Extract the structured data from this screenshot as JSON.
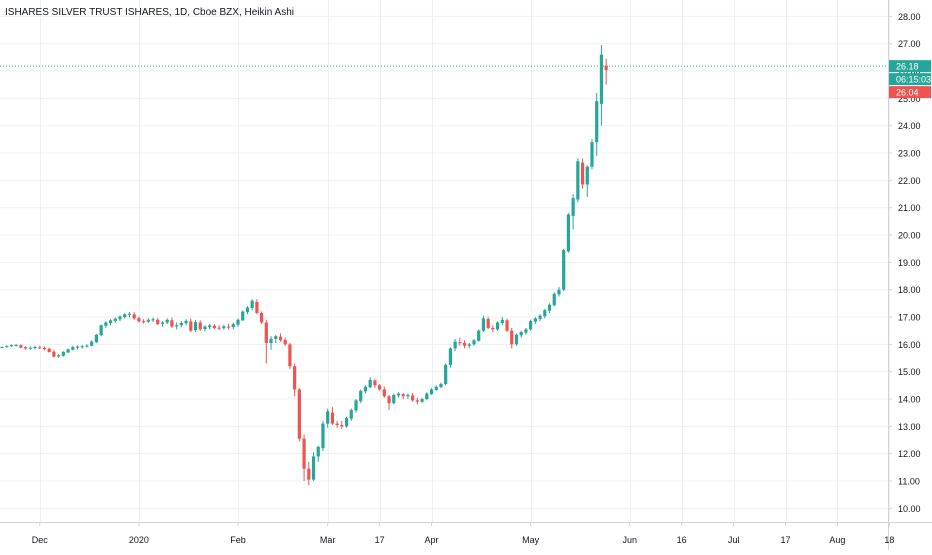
{
  "header": {
    "title": "ISHARES SILVER TRUST ISHARES, 1D, Cboe BZX, Heikin Ashi"
  },
  "price_badges": {
    "last": "26.18",
    "countdown": "06:15:03",
    "open": "26.04"
  },
  "colors": {
    "up": "#26a69a",
    "down": "#ef5350",
    "grid": "#eef0f3",
    "axis_text": "#131722",
    "price_line": "#26a69a"
  },
  "chart_data": {
    "type": "candlestick",
    "style": "Heikin Ashi",
    "symbol": "ISHARES SILVER TRUST ISHARES",
    "interval": "1D",
    "exchange": "Cboe BZX",
    "ylim": [
      9.5,
      28.6
    ],
    "y_ticks": [
      10,
      11,
      12,
      13,
      14,
      15,
      16,
      17,
      18,
      19,
      20,
      21,
      22,
      23,
      24,
      25,
      26,
      27,
      28
    ],
    "y_tick_labels": [
      "10.00",
      "11.00",
      "12.00",
      "13.00",
      "14.00",
      "15.00",
      "16.00",
      "17.00",
      "18.00",
      "19.00",
      "20.00",
      "21.00",
      "22.00",
      "23.00",
      "24.00",
      "25.00",
      "26.00",
      "27.00",
      "28.00"
    ],
    "x_ticks": [
      {
        "label": "Dec",
        "index": 8
      },
      {
        "label": "2020",
        "index": 29
      },
      {
        "label": "Feb",
        "index": 50
      },
      {
        "label": "Mar",
        "index": 69
      },
      {
        "label": "17",
        "index": 80
      },
      {
        "label": "Apr",
        "index": 91
      },
      {
        "label": "May",
        "index": 112
      },
      {
        "label": "Jun",
        "index": 133
      },
      {
        "label": "16",
        "index": 144
      },
      {
        "label": "Jul",
        "index": 155
      },
      {
        "label": "17",
        "index": 166
      },
      {
        "label": "Aug",
        "index": 177
      },
      {
        "label": "18",
        "index": 188
      }
    ],
    "grid": true,
    "last_price": 26.18,
    "candles": [
      [
        15.9,
        15.92,
        15.86,
        15.9
      ],
      [
        15.9,
        15.96,
        15.88,
        15.94
      ],
      [
        15.93,
        16.0,
        15.9,
        15.97
      ],
      [
        15.96,
        16.02,
        15.92,
        15.98
      ],
      [
        15.97,
        16.0,
        15.85,
        15.88
      ],
      [
        15.9,
        15.93,
        15.8,
        15.85
      ],
      [
        15.86,
        15.92,
        15.8,
        15.88
      ],
      [
        15.87,
        15.95,
        15.82,
        15.9
      ],
      [
        15.89,
        15.95,
        15.83,
        15.86
      ],
      [
        15.87,
        15.92,
        15.78,
        15.82
      ],
      [
        15.84,
        15.88,
        15.7,
        15.72
      ],
      [
        15.73,
        15.8,
        15.52,
        15.55
      ],
      [
        15.56,
        15.65,
        15.5,
        15.6
      ],
      [
        15.58,
        15.75,
        15.55,
        15.72
      ],
      [
        15.7,
        15.85,
        15.68,
        15.82
      ],
      [
        15.8,
        15.95,
        15.78,
        15.9
      ],
      [
        15.88,
        15.96,
        15.82,
        15.92
      ],
      [
        15.9,
        15.98,
        15.84,
        15.93
      ],
      [
        15.92,
        16.0,
        15.88,
        15.96
      ],
      [
        15.95,
        16.15,
        15.92,
        16.1
      ],
      [
        16.08,
        16.38,
        16.05,
        16.35
      ],
      [
        16.34,
        16.72,
        16.3,
        16.7
      ],
      [
        16.68,
        16.85,
        16.6,
        16.8
      ],
      [
        16.78,
        16.92,
        16.7,
        16.88
      ],
      [
        16.86,
        16.98,
        16.8,
        16.94
      ],
      [
        16.92,
        17.06,
        16.85,
        17.02
      ],
      [
        17.0,
        17.15,
        16.95,
        17.1
      ],
      [
        17.08,
        17.18,
        16.98,
        17.12
      ],
      [
        17.1,
        17.18,
        16.9,
        16.95
      ],
      [
        16.96,
        17.02,
        16.8,
        16.84
      ],
      [
        16.85,
        16.92,
        16.76,
        16.82
      ],
      [
        16.83,
        16.96,
        16.78,
        16.9
      ],
      [
        16.88,
        16.98,
        16.82,
        16.92
      ],
      [
        16.9,
        16.96,
        16.7,
        16.74
      ],
      [
        16.75,
        16.85,
        16.65,
        16.8
      ],
      [
        16.8,
        16.95,
        16.74,
        16.9
      ],
      [
        16.88,
        16.98,
        16.6,
        16.65
      ],
      [
        16.66,
        16.8,
        16.55,
        16.7
      ],
      [
        16.7,
        16.85,
        16.62,
        16.78
      ],
      [
        16.77,
        16.92,
        16.7,
        16.86
      ],
      [
        16.84,
        16.94,
        16.45,
        16.5
      ],
      [
        16.52,
        16.9,
        16.45,
        16.82
      ],
      [
        16.8,
        16.88,
        16.5,
        16.55
      ],
      [
        16.56,
        16.7,
        16.48,
        16.65
      ],
      [
        16.64,
        16.75,
        16.55,
        16.7
      ],
      [
        16.68,
        16.74,
        16.55,
        16.6
      ],
      [
        16.61,
        16.7,
        16.52,
        16.58
      ],
      [
        16.59,
        16.72,
        16.53,
        16.66
      ],
      [
        16.65,
        16.75,
        16.55,
        16.62
      ],
      [
        16.63,
        16.8,
        16.55,
        16.74
      ],
      [
        16.72,
        16.95,
        16.65,
        16.9
      ],
      [
        16.88,
        17.25,
        16.85,
        17.2
      ],
      [
        17.18,
        17.4,
        17.1,
        17.35
      ],
      [
        17.33,
        17.65,
        17.25,
        17.6
      ],
      [
        17.55,
        17.65,
        17.1,
        17.15
      ],
      [
        17.15,
        17.2,
        16.75,
        16.8
      ],
      [
        16.8,
        16.9,
        15.3,
        16.05
      ],
      [
        16.05,
        16.3,
        15.8,
        16.2
      ],
      [
        16.2,
        16.35,
        16.05,
        16.3
      ],
      [
        16.28,
        16.4,
        16.1,
        16.15
      ],
      [
        16.16,
        16.25,
        15.95,
        16.0
      ],
      [
        16.0,
        16.05,
        15.1,
        15.2
      ],
      [
        15.2,
        15.3,
        14.1,
        14.35
      ],
      [
        14.35,
        14.4,
        12.45,
        12.55
      ],
      [
        12.55,
        12.7,
        11.0,
        11.45
      ],
      [
        11.45,
        11.7,
        10.85,
        11.05
      ],
      [
        11.05,
        12.05,
        11.0,
        11.9
      ],
      [
        11.9,
        12.3,
        11.7,
        12.25
      ],
      [
        12.2,
        13.2,
        12.1,
        13.1
      ],
      [
        13.1,
        13.65,
        12.95,
        13.55
      ],
      [
        13.5,
        13.7,
        13.05,
        13.1
      ],
      [
        13.1,
        13.2,
        12.95,
        13.05
      ],
      [
        13.05,
        13.2,
        12.9,
        13.0
      ],
      [
        13.0,
        13.35,
        12.95,
        13.3
      ],
      [
        13.28,
        13.65,
        13.2,
        13.6
      ],
      [
        13.58,
        14.0,
        13.5,
        13.95
      ],
      [
        13.93,
        14.35,
        13.85,
        14.3
      ],
      [
        14.28,
        14.5,
        14.2,
        14.45
      ],
      [
        14.43,
        14.8,
        14.4,
        14.7
      ],
      [
        14.68,
        14.72,
        14.4,
        14.5
      ],
      [
        14.5,
        14.55,
        14.3,
        14.35
      ],
      [
        14.35,
        14.45,
        14.05,
        14.1
      ],
      [
        14.1,
        14.15,
        13.6,
        13.85
      ],
      [
        13.85,
        14.2,
        13.8,
        14.15
      ],
      [
        14.13,
        14.25,
        14.05,
        14.2
      ],
      [
        14.18,
        14.22,
        14.0,
        14.1
      ],
      [
        14.1,
        14.2,
        14.0,
        14.15
      ],
      [
        14.13,
        14.22,
        13.9,
        13.95
      ],
      [
        13.95,
        14.05,
        13.8,
        13.9
      ],
      [
        13.9,
        14.05,
        13.85,
        14.0
      ],
      [
        14.0,
        14.25,
        13.95,
        14.2
      ],
      [
        14.18,
        14.4,
        14.15,
        14.35
      ],
      [
        14.33,
        14.5,
        14.3,
        14.45
      ],
      [
        14.43,
        14.6,
        14.4,
        14.55
      ],
      [
        14.55,
        15.3,
        14.5,
        15.25
      ],
      [
        15.25,
        15.9,
        15.15,
        15.85
      ],
      [
        15.85,
        16.2,
        15.75,
        16.1
      ],
      [
        16.08,
        16.25,
        15.95,
        16.05
      ],
      [
        16.05,
        16.15,
        15.85,
        15.95
      ],
      [
        15.95,
        16.05,
        15.85,
        16.0
      ],
      [
        16.0,
        16.2,
        15.95,
        16.15
      ],
      [
        16.13,
        16.55,
        16.1,
        16.5
      ],
      [
        16.5,
        17.05,
        16.45,
        16.95
      ],
      [
        16.93,
        17.0,
        16.55,
        16.6
      ],
      [
        16.6,
        16.7,
        16.45,
        16.55
      ],
      [
        16.55,
        16.85,
        16.5,
        16.8
      ],
      [
        16.78,
        17.0,
        16.7,
        16.9
      ],
      [
        16.88,
        16.95,
        16.45,
        16.5
      ],
      [
        16.5,
        16.6,
        15.85,
        16.0
      ],
      [
        16.0,
        16.4,
        15.95,
        16.35
      ],
      [
        16.33,
        16.5,
        16.25,
        16.45
      ],
      [
        16.43,
        16.6,
        16.35,
        16.55
      ],
      [
        16.55,
        16.9,
        16.5,
        16.85
      ],
      [
        16.83,
        17.0,
        16.75,
        16.95
      ],
      [
        16.93,
        17.1,
        16.85,
        17.05
      ],
      [
        17.03,
        17.3,
        16.95,
        17.25
      ],
      [
        17.23,
        17.5,
        17.15,
        17.45
      ],
      [
        17.43,
        17.9,
        17.4,
        17.85
      ],
      [
        17.83,
        18.1,
        17.75,
        18.0
      ],
      [
        18.0,
        19.5,
        17.95,
        19.45
      ],
      [
        19.4,
        20.8,
        19.35,
        20.75
      ],
      [
        20.7,
        21.5,
        20.2,
        21.35
      ],
      [
        21.3,
        22.8,
        21.2,
        22.7
      ],
      [
        22.65,
        22.8,
        21.7,
        21.85
      ],
      [
        21.85,
        22.55,
        21.4,
        22.5
      ],
      [
        22.5,
        23.5,
        22.4,
        23.4
      ],
      [
        23.4,
        25.2,
        22.9,
        24.9
      ],
      [
        24.8,
        26.95,
        24.0,
        26.6
      ],
      [
        26.2,
        26.45,
        25.5,
        26.04
      ]
    ]
  }
}
